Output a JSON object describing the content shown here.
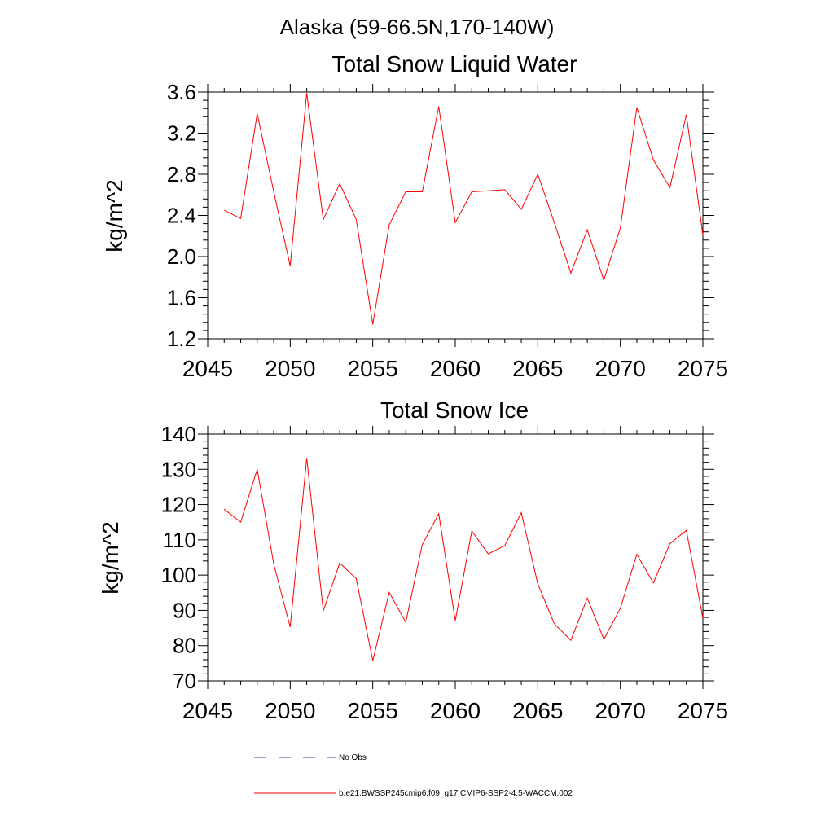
{
  "header": {
    "title": "Alaska (59-66.5N,170-140W)"
  },
  "legend": {
    "items": [
      {
        "label": "No Obs",
        "color": "#3b3b8f",
        "style": "dashed"
      },
      {
        "label": "b.e21.BWSSP245cmip6.f09_g17.CMIP6-SSP2-4.5-WACCM.002",
        "color": "#ff0000",
        "style": "solid"
      }
    ]
  },
  "chart_data": [
    {
      "type": "line",
      "title": "Total Snow Liquid Water",
      "xlabel": "",
      "ylabel": "kg/m^2",
      "xlim": [
        2045,
        2075
      ],
      "ylim": [
        1.2,
        3.6
      ],
      "x_ticks": [
        "2045",
        "2050",
        "2055",
        "2060",
        "2065",
        "2070",
        "2075"
      ],
      "y_ticks": [
        "1.2",
        "1.6",
        "2.0",
        "2.4",
        "2.8",
        "3.2",
        "3.6"
      ],
      "grid": false,
      "series": [
        {
          "color": "#ff0000",
          "x": [
            2046,
            2047,
            2048,
            2049,
            2050,
            2051,
            2052,
            2053,
            2054,
            2055,
            2056,
            2057,
            2058,
            2059,
            2060,
            2061,
            2062,
            2063,
            2064,
            2065,
            2066,
            2067,
            2068,
            2069,
            2070,
            2071,
            2072,
            2073,
            2074,
            2075
          ],
          "y": [
            2.45,
            2.37,
            3.39,
            2.63,
            1.91,
            3.59,
            2.36,
            2.71,
            2.36,
            1.34,
            2.31,
            2.63,
            2.63,
            3.46,
            2.33,
            2.63,
            2.64,
            2.65,
            2.46,
            2.8,
            2.33,
            1.84,
            2.26,
            1.77,
            2.28,
            3.45,
            2.94,
            2.67,
            3.38,
            2.21
          ]
        }
      ]
    },
    {
      "type": "line",
      "title": "Total Snow Ice",
      "xlabel": "",
      "ylabel": "kg/m^2",
      "xlim": [
        2045,
        2075
      ],
      "ylim": [
        70,
        140
      ],
      "x_ticks": [
        "2045",
        "2050",
        "2055",
        "2060",
        "2065",
        "2070",
        "2075"
      ],
      "y_ticks": [
        "70",
        "80",
        "90",
        "100",
        "110",
        "120",
        "130",
        "140"
      ],
      "grid": false,
      "series": [
        {
          "color": "#ff0000",
          "x": [
            2046,
            2047,
            2048,
            2049,
            2050,
            2051,
            2052,
            2053,
            2054,
            2055,
            2056,
            2057,
            2058,
            2059,
            2060,
            2061,
            2062,
            2063,
            2064,
            2065,
            2066,
            2067,
            2068,
            2069,
            2070,
            2071,
            2072,
            2073,
            2074,
            2075
          ],
          "y": [
            118.7,
            115,
            130,
            103.1,
            85.3,
            133.2,
            89.9,
            103.4,
            99,
            75.7,
            95.1,
            86.6,
            108.7,
            117.4,
            87.1,
            112.5,
            106,
            108.4,
            117.7,
            97.5,
            86.2,
            81.5,
            93.5,
            81.8,
            90.6,
            105.9,
            97.8,
            108.9,
            112.7,
            87.8
          ]
        }
      ]
    }
  ]
}
